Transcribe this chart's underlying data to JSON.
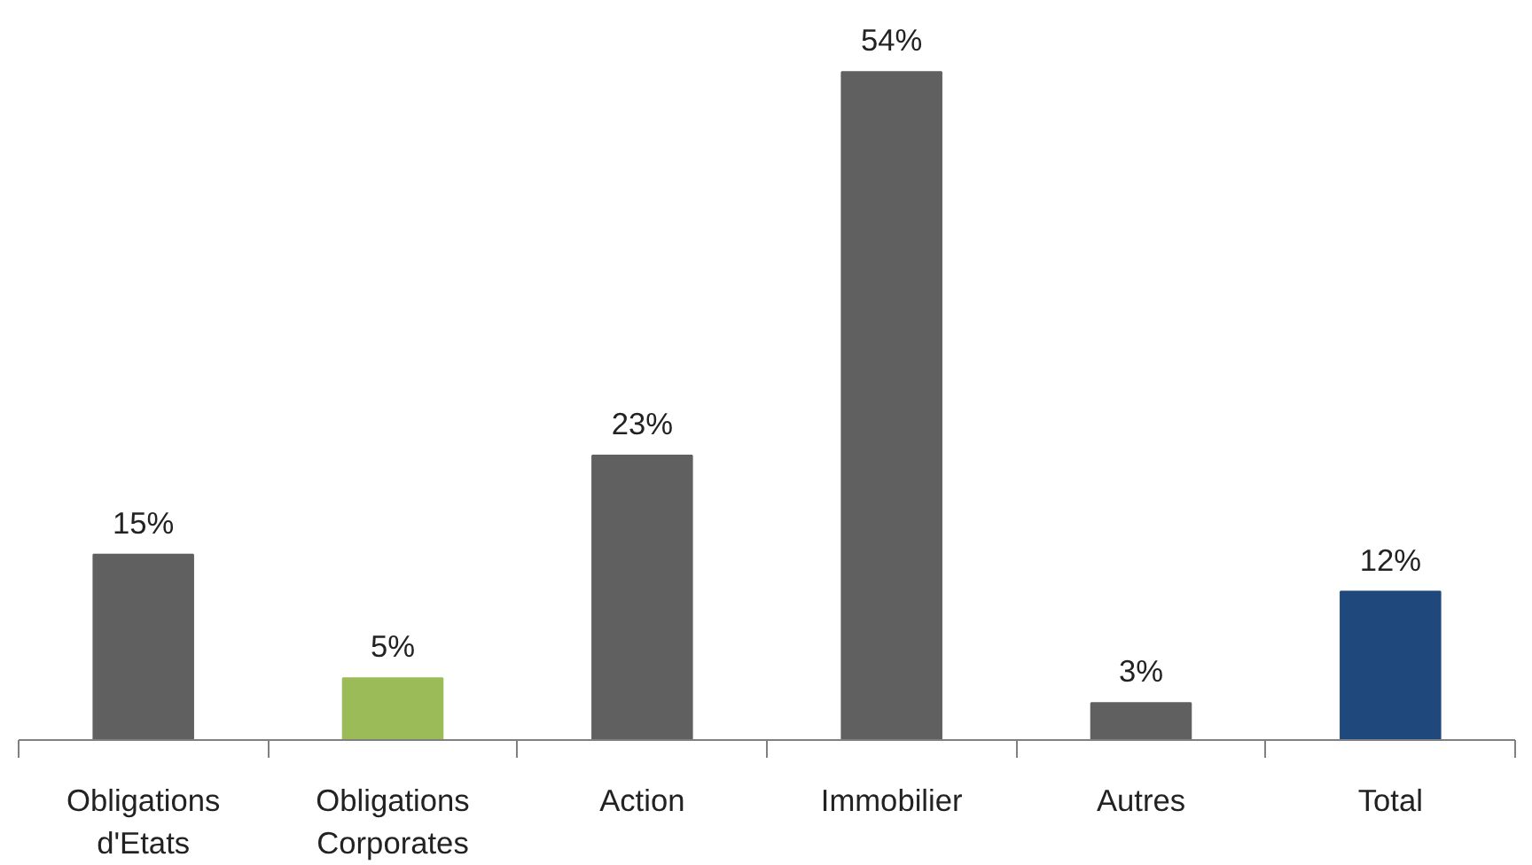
{
  "chart_data": {
    "type": "bar",
    "categories": [
      "Obligations\nd'Etats",
      "Obligations\nCorporates",
      "Action",
      "Immobilier",
      "Autres",
      "Total"
    ],
    "values": [
      15,
      5,
      23,
      54,
      3,
      12
    ],
    "value_labels": [
      "15%",
      "5%",
      "23%",
      "54%",
      "3%",
      "12%"
    ],
    "colors": [
      "#606060",
      "#9bbb59",
      "#606060",
      "#606060",
      "#606060",
      "#1f497d"
    ],
    "grid": false
  }
}
